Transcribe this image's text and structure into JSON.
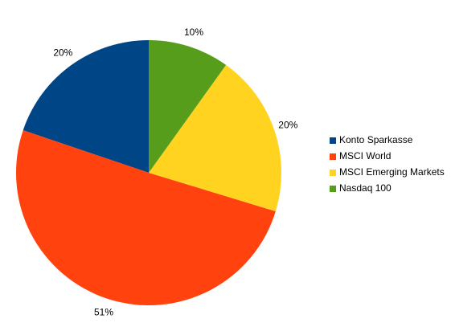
{
  "chart_data": {
    "type": "pie",
    "categories": [
      "Konto Sparkasse",
      "MSCI World",
      "MSCI Emerging Markets",
      "Nasdaq 100"
    ],
    "values": [
      20,
      51,
      20,
      10
    ],
    "value_labels": [
      "20%",
      "51%",
      "20%",
      "10%"
    ],
    "colors": [
      "#004586",
      "#ff420e",
      "#ffd320",
      "#579d1c"
    ],
    "legend": "right"
  }
}
